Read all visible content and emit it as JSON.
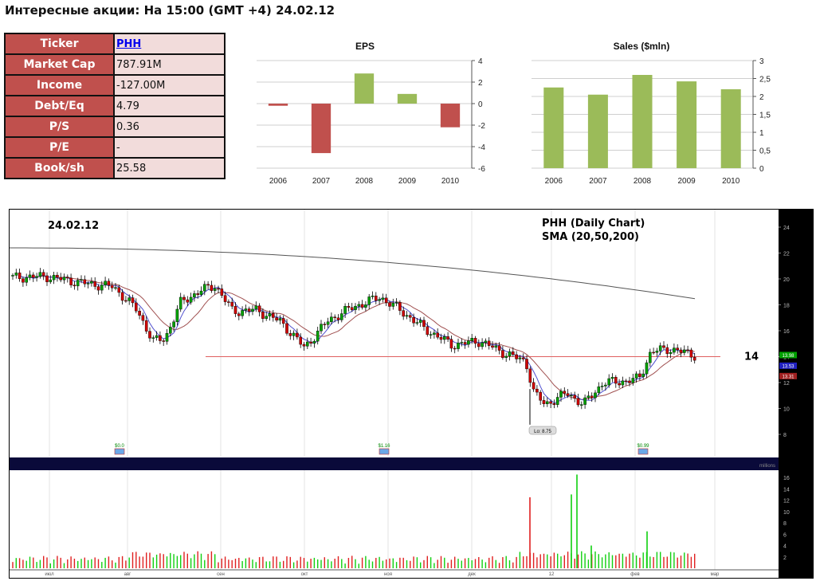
{
  "header": {
    "title": "Интересные акции: На 15:00 (GMT +4) 24.02.12"
  },
  "info_table": [
    {
      "key": "Ticker",
      "value": "PHH",
      "link": true
    },
    {
      "key": "Market Cap",
      "value": "787.91M"
    },
    {
      "key": "Income",
      "value": "-127.00M"
    },
    {
      "key": "Debt/Eq",
      "value": "4.79"
    },
    {
      "key": "P/S",
      "value": "0.36"
    },
    {
      "key": "P/E",
      "value": "-"
    },
    {
      "key": "Book/sh",
      "value": "25.58"
    }
  ],
  "colors": {
    "positive": "#9bbb59",
    "negative": "#c0504d",
    "table_key_bg": "#c0504d",
    "table_value_bg": "#f2dcdb"
  },
  "main_chart": {
    "date_label": "24.02.12",
    "title_line1": "PHH (Daily Chart)",
    "title_line2": "SMA (20,50,200)",
    "level_label": "14",
    "low_label": "Lo: 8.75",
    "price_ticks": [
      "24",
      "22",
      "20",
      "18",
      "16",
      "14",
      "12",
      "10",
      "8"
    ],
    "price_badges": [
      "13.98",
      "13.53",
      "13.31"
    ],
    "volume_ticks": [
      "16",
      "14",
      "12",
      "10",
      "8",
      "6",
      "4",
      "2"
    ],
    "volume_unit": "millions",
    "month_labels": [
      "июл",
      "авг",
      "сен",
      "окт",
      "ноя",
      "дек",
      "12",
      "фев",
      "мар"
    ],
    "events": [
      "$0.0",
      "$1.16",
      "$0.99"
    ]
  },
  "chart_data": [
    {
      "type": "bar",
      "title": "EPS",
      "categories": [
        "2006",
        "2007",
        "2008",
        "2009",
        "2010"
      ],
      "values": [
        -0.2,
        -4.6,
        2.8,
        0.9,
        -2.2
      ],
      "ylim": [
        -6,
        4
      ],
      "yticks": [
        "4",
        "2",
        "0",
        "-2",
        "-4",
        "-6"
      ],
      "grid": true
    },
    {
      "type": "bar",
      "title": "Sales ($mln)",
      "categories": [
        "2006",
        "2007",
        "2008",
        "2009",
        "2010"
      ],
      "values": [
        2.25,
        2.05,
        2.6,
        2.42,
        2.2
      ],
      "ylim": [
        0,
        3
      ],
      "yticks": [
        "3",
        "2,5",
        "2",
        "1,5",
        "1",
        "0,5",
        "0"
      ],
      "grid": true
    }
  ]
}
